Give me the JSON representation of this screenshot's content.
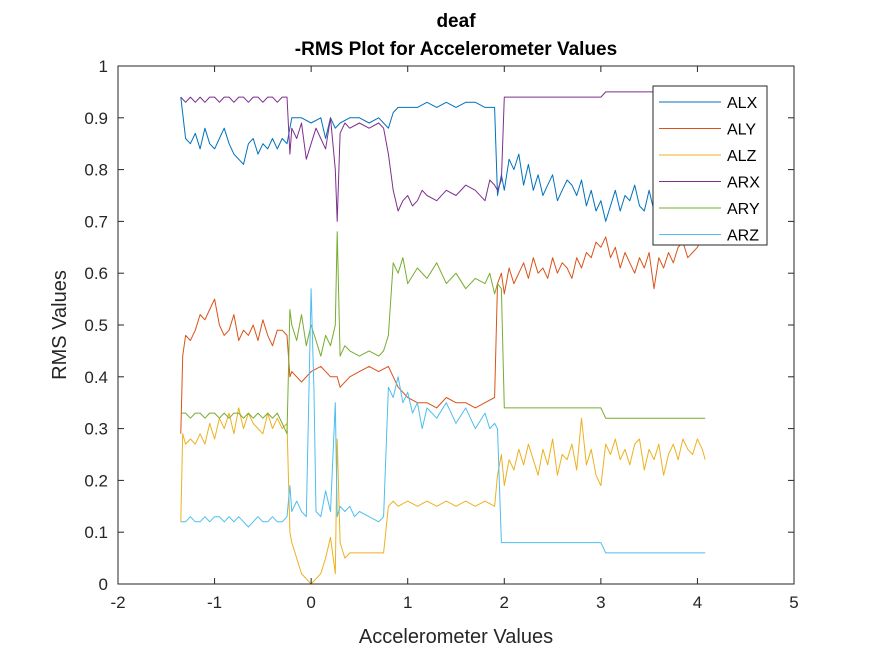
{
  "chart_data": {
    "type": "line",
    "title": "deaf",
    "subtitle": "-RMS Plot for Accelerometer Values",
    "xlabel": "Accelerometer Values",
    "ylabel": "RMS Values",
    "xlim": [
      -2,
      5
    ],
    "ylim": [
      0,
      1
    ],
    "xticks": [
      "-2",
      "-1",
      "0",
      "1",
      "2",
      "3",
      "4",
      "5"
    ],
    "yticks": [
      "0",
      "0.1",
      "0.2",
      "0.3",
      "0.4",
      "0.5",
      "0.6",
      "0.7",
      "0.8",
      "0.9",
      "1"
    ],
    "grid": false,
    "legend_position": "top-right",
    "series": [
      {
        "name": "ALX",
        "color": "#0072BD",
        "x": [
          -1.35,
          -1.3,
          -1.25,
          -1.2,
          -1.15,
          -1.1,
          -1.05,
          -1.0,
          -0.95,
          -0.9,
          -0.85,
          -0.8,
          -0.75,
          -0.7,
          -0.65,
          -0.6,
          -0.55,
          -0.5,
          -0.45,
          -0.4,
          -0.35,
          -0.3,
          -0.25,
          -0.2,
          -0.1,
          0.0,
          0.1,
          0.15,
          0.2,
          0.25,
          0.3,
          0.4,
          0.5,
          0.6,
          0.7,
          0.8,
          0.85,
          0.9,
          1.0,
          1.1,
          1.2,
          1.3,
          1.4,
          1.5,
          1.6,
          1.7,
          1.8,
          1.9,
          1.93,
          1.97,
          2.0,
          2.05,
          2.1,
          2.15,
          2.2,
          2.25,
          2.3,
          2.35,
          2.4,
          2.45,
          2.5,
          2.55,
          2.6,
          2.65,
          2.7,
          2.75,
          2.8,
          2.85,
          2.9,
          2.95,
          3.0,
          3.05,
          3.1,
          3.15,
          3.2,
          3.25,
          3.3,
          3.35,
          3.4,
          3.45,
          3.5,
          3.55,
          3.6,
          3.65,
          3.7,
          3.75,
          3.8,
          3.85,
          3.9,
          3.95,
          4.0,
          4.05,
          4.08
        ],
        "y": [
          0.94,
          0.86,
          0.85,
          0.87,
          0.84,
          0.88,
          0.85,
          0.84,
          0.86,
          0.88,
          0.85,
          0.83,
          0.82,
          0.81,
          0.85,
          0.86,
          0.83,
          0.85,
          0.84,
          0.86,
          0.84,
          0.86,
          0.85,
          0.9,
          0.9,
          0.89,
          0.9,
          0.86,
          0.9,
          0.88,
          0.89,
          0.9,
          0.9,
          0.89,
          0.9,
          0.88,
          0.91,
          0.92,
          0.92,
          0.92,
          0.93,
          0.92,
          0.93,
          0.92,
          0.93,
          0.93,
          0.92,
          0.92,
          0.75,
          0.79,
          0.76,
          0.82,
          0.8,
          0.83,
          0.77,
          0.81,
          0.76,
          0.79,
          0.75,
          0.77,
          0.79,
          0.74,
          0.76,
          0.78,
          0.77,
          0.75,
          0.78,
          0.73,
          0.76,
          0.72,
          0.74,
          0.7,
          0.73,
          0.76,
          0.72,
          0.75,
          0.74,
          0.77,
          0.73,
          0.72,
          0.76,
          0.72,
          0.74,
          0.77,
          0.73,
          0.75,
          0.71,
          0.74,
          0.72,
          0.76,
          0.73,
          0.77,
          0.75
        ]
      },
      {
        "name": "ALY",
        "color": "#D95319",
        "x": [
          -1.35,
          -1.33,
          -1.3,
          -1.25,
          -1.2,
          -1.15,
          -1.1,
          -1.05,
          -1.0,
          -0.95,
          -0.9,
          -0.85,
          -0.8,
          -0.75,
          -0.7,
          -0.65,
          -0.6,
          -0.55,
          -0.5,
          -0.45,
          -0.4,
          -0.35,
          -0.3,
          -0.25,
          -0.22,
          -0.2,
          -0.1,
          0.0,
          0.1,
          0.2,
          0.27,
          0.3,
          0.4,
          0.5,
          0.6,
          0.7,
          0.8,
          0.9,
          1.0,
          1.1,
          1.2,
          1.3,
          1.4,
          1.5,
          1.6,
          1.7,
          1.8,
          1.9,
          1.93,
          1.97,
          2.0,
          2.05,
          2.1,
          2.15,
          2.2,
          2.25,
          2.3,
          2.35,
          2.4,
          2.45,
          2.5,
          2.55,
          2.6,
          2.65,
          2.7,
          2.75,
          2.8,
          2.85,
          2.9,
          2.95,
          3.0,
          3.05,
          3.1,
          3.15,
          3.2,
          3.25,
          3.3,
          3.35,
          3.4,
          3.45,
          3.5,
          3.55,
          3.6,
          3.65,
          3.7,
          3.75,
          3.8,
          3.85,
          3.9,
          3.95,
          4.0,
          4.05,
          4.08
        ],
        "y": [
          0.29,
          0.44,
          0.48,
          0.47,
          0.49,
          0.52,
          0.51,
          0.53,
          0.55,
          0.5,
          0.48,
          0.49,
          0.52,
          0.47,
          0.49,
          0.48,
          0.5,
          0.47,
          0.51,
          0.48,
          0.46,
          0.49,
          0.49,
          0.48,
          0.4,
          0.41,
          0.39,
          0.41,
          0.42,
          0.4,
          0.4,
          0.38,
          0.4,
          0.41,
          0.42,
          0.41,
          0.42,
          0.38,
          0.36,
          0.35,
          0.35,
          0.34,
          0.36,
          0.35,
          0.35,
          0.34,
          0.35,
          0.36,
          0.58,
          0.6,
          0.56,
          0.61,
          0.58,
          0.6,
          0.62,
          0.59,
          0.63,
          0.6,
          0.61,
          0.59,
          0.63,
          0.6,
          0.62,
          0.61,
          0.59,
          0.63,
          0.61,
          0.64,
          0.63,
          0.66,
          0.65,
          0.67,
          0.63,
          0.65,
          0.61,
          0.64,
          0.62,
          0.6,
          0.63,
          0.61,
          0.64,
          0.57,
          0.63,
          0.61,
          0.64,
          0.62,
          0.65,
          0.66,
          0.63,
          0.64,
          0.65,
          0.67,
          0.66
        ]
      },
      {
        "name": "ALZ",
        "color": "#EDB120",
        "x": [
          -1.35,
          -1.33,
          -1.3,
          -1.25,
          -1.2,
          -1.15,
          -1.1,
          -1.05,
          -1.0,
          -0.95,
          -0.9,
          -0.85,
          -0.8,
          -0.75,
          -0.7,
          -0.65,
          -0.6,
          -0.55,
          -0.5,
          -0.45,
          -0.4,
          -0.35,
          -0.3,
          -0.25,
          -0.22,
          -0.2,
          -0.15,
          -0.1,
          -0.05,
          0.0,
          0.05,
          0.1,
          0.15,
          0.2,
          0.25,
          0.27,
          0.3,
          0.35,
          0.4,
          0.5,
          0.6,
          0.7,
          0.75,
          0.8,
          0.85,
          0.9,
          1.0,
          1.1,
          1.2,
          1.3,
          1.4,
          1.5,
          1.6,
          1.7,
          1.8,
          1.9,
          1.93,
          1.97,
          2.0,
          2.05,
          2.1,
          2.15,
          2.2,
          2.25,
          2.3,
          2.35,
          2.4,
          2.45,
          2.5,
          2.55,
          2.6,
          2.65,
          2.7,
          2.75,
          2.8,
          2.85,
          2.9,
          2.95,
          3.0,
          3.05,
          3.1,
          3.15,
          3.2,
          3.25,
          3.3,
          3.35,
          3.4,
          3.45,
          3.5,
          3.55,
          3.6,
          3.65,
          3.7,
          3.75,
          3.8,
          3.85,
          3.9,
          3.95,
          4.0,
          4.05,
          4.08
        ],
        "y": [
          0.12,
          0.29,
          0.27,
          0.28,
          0.27,
          0.29,
          0.27,
          0.31,
          0.28,
          0.32,
          0.3,
          0.33,
          0.29,
          0.34,
          0.3,
          0.33,
          0.31,
          0.3,
          0.29,
          0.33,
          0.3,
          0.32,
          0.3,
          0.31,
          0.1,
          0.08,
          0.05,
          0.02,
          0.01,
          0.0,
          0.01,
          0.02,
          0.05,
          0.09,
          0.02,
          0.28,
          0.08,
          0.05,
          0.06,
          0.06,
          0.06,
          0.06,
          0.06,
          0.15,
          0.16,
          0.15,
          0.16,
          0.15,
          0.16,
          0.15,
          0.16,
          0.15,
          0.16,
          0.15,
          0.16,
          0.15,
          0.21,
          0.25,
          0.19,
          0.24,
          0.22,
          0.26,
          0.23,
          0.27,
          0.24,
          0.21,
          0.26,
          0.23,
          0.28,
          0.21,
          0.25,
          0.24,
          0.27,
          0.22,
          0.32,
          0.23,
          0.26,
          0.21,
          0.19,
          0.27,
          0.25,
          0.28,
          0.24,
          0.26,
          0.23,
          0.27,
          0.28,
          0.22,
          0.26,
          0.24,
          0.27,
          0.21,
          0.25,
          0.27,
          0.24,
          0.28,
          0.26,
          0.25,
          0.28,
          0.26,
          0.24
        ]
      },
      {
        "name": "ARX",
        "color": "#7E2F8E",
        "x": [
          -1.35,
          -1.3,
          -1.25,
          -1.2,
          -1.15,
          -1.1,
          -1.05,
          -1.0,
          -0.95,
          -0.9,
          -0.85,
          -0.8,
          -0.75,
          -0.7,
          -0.65,
          -0.6,
          -0.55,
          -0.5,
          -0.45,
          -0.4,
          -0.35,
          -0.3,
          -0.25,
          -0.22,
          -0.2,
          -0.15,
          -0.1,
          -0.05,
          0.0,
          0.05,
          0.1,
          0.15,
          0.2,
          0.25,
          0.27,
          0.3,
          0.35,
          0.4,
          0.5,
          0.6,
          0.7,
          0.75,
          0.8,
          0.85,
          0.9,
          0.95,
          1.0,
          1.05,
          1.1,
          1.15,
          1.2,
          1.3,
          1.4,
          1.5,
          1.6,
          1.7,
          1.8,
          1.85,
          1.9,
          1.93,
          1.97,
          2.0,
          3.0,
          3.05,
          4.08
        ],
        "y": [
          0.94,
          0.93,
          0.94,
          0.93,
          0.94,
          0.93,
          0.94,
          0.94,
          0.93,
          0.94,
          0.94,
          0.93,
          0.94,
          0.94,
          0.93,
          0.94,
          0.94,
          0.93,
          0.94,
          0.94,
          0.93,
          0.94,
          0.94,
          0.83,
          0.88,
          0.86,
          0.89,
          0.82,
          0.85,
          0.88,
          0.86,
          0.84,
          0.9,
          0.8,
          0.7,
          0.87,
          0.89,
          0.88,
          0.89,
          0.88,
          0.89,
          0.88,
          0.83,
          0.76,
          0.72,
          0.74,
          0.75,
          0.73,
          0.74,
          0.76,
          0.75,
          0.74,
          0.76,
          0.75,
          0.77,
          0.76,
          0.74,
          0.78,
          0.77,
          0.76,
          0.78,
          0.94,
          0.94,
          0.95,
          0.95
        ]
      },
      {
        "name": "ARY",
        "color": "#77AC30",
        "x": [
          -1.35,
          -1.3,
          -1.25,
          -1.2,
          -1.15,
          -1.1,
          -1.05,
          -1.0,
          -0.95,
          -0.9,
          -0.85,
          -0.8,
          -0.75,
          -0.7,
          -0.65,
          -0.6,
          -0.55,
          -0.5,
          -0.45,
          -0.4,
          -0.35,
          -0.3,
          -0.25,
          -0.22,
          -0.2,
          -0.15,
          -0.1,
          -0.05,
          0.0,
          0.05,
          0.1,
          0.15,
          0.2,
          0.25,
          0.27,
          0.3,
          0.35,
          0.4,
          0.5,
          0.6,
          0.7,
          0.75,
          0.8,
          0.85,
          0.9,
          0.95,
          1.0,
          1.1,
          1.2,
          1.3,
          1.4,
          1.5,
          1.6,
          1.7,
          1.8,
          1.85,
          1.9,
          1.93,
          1.97,
          2.0,
          3.0,
          3.05,
          4.08
        ],
        "y": [
          0.33,
          0.33,
          0.32,
          0.33,
          0.33,
          0.32,
          0.33,
          0.33,
          0.32,
          0.33,
          0.32,
          0.33,
          0.33,
          0.32,
          0.33,
          0.32,
          0.33,
          0.32,
          0.33,
          0.32,
          0.33,
          0.31,
          0.29,
          0.53,
          0.5,
          0.47,
          0.52,
          0.46,
          0.5,
          0.47,
          0.44,
          0.48,
          0.46,
          0.5,
          0.68,
          0.44,
          0.46,
          0.45,
          0.44,
          0.45,
          0.44,
          0.45,
          0.48,
          0.62,
          0.6,
          0.63,
          0.58,
          0.61,
          0.59,
          0.62,
          0.58,
          0.6,
          0.57,
          0.59,
          0.58,
          0.6,
          0.56,
          0.58,
          0.57,
          0.34,
          0.34,
          0.32,
          0.32
        ]
      },
      {
        "name": "ARZ",
        "color": "#4DBEEE",
        "x": [
          -1.35,
          -1.3,
          -1.25,
          -1.2,
          -1.15,
          -1.1,
          -1.05,
          -1.0,
          -0.95,
          -0.9,
          -0.85,
          -0.8,
          -0.75,
          -0.7,
          -0.65,
          -0.6,
          -0.55,
          -0.5,
          -0.45,
          -0.4,
          -0.35,
          -0.3,
          -0.25,
          -0.22,
          -0.2,
          -0.15,
          -0.1,
          -0.05,
          0.0,
          0.03,
          0.05,
          0.1,
          0.15,
          0.2,
          0.25,
          0.27,
          0.3,
          0.35,
          0.4,
          0.45,
          0.5,
          0.6,
          0.7,
          0.75,
          0.8,
          0.85,
          0.9,
          0.95,
          1.0,
          1.05,
          1.1,
          1.15,
          1.2,
          1.3,
          1.4,
          1.5,
          1.6,
          1.7,
          1.8,
          1.85,
          1.9,
          1.93,
          1.97,
          2.0,
          3.0,
          3.05,
          4.08
        ],
        "y": [
          0.12,
          0.12,
          0.13,
          0.12,
          0.12,
          0.13,
          0.12,
          0.13,
          0.13,
          0.12,
          0.13,
          0.12,
          0.13,
          0.12,
          0.11,
          0.12,
          0.13,
          0.12,
          0.12,
          0.13,
          0.12,
          0.12,
          0.13,
          0.19,
          0.14,
          0.16,
          0.14,
          0.13,
          0.57,
          0.37,
          0.14,
          0.13,
          0.18,
          0.14,
          0.35,
          0.13,
          0.15,
          0.14,
          0.15,
          0.13,
          0.14,
          0.13,
          0.12,
          0.13,
          0.38,
          0.36,
          0.4,
          0.35,
          0.37,
          0.33,
          0.35,
          0.3,
          0.34,
          0.32,
          0.35,
          0.31,
          0.34,
          0.3,
          0.33,
          0.3,
          0.31,
          0.3,
          0.08,
          0.08,
          0.08,
          0.06,
          0.06
        ]
      }
    ]
  }
}
